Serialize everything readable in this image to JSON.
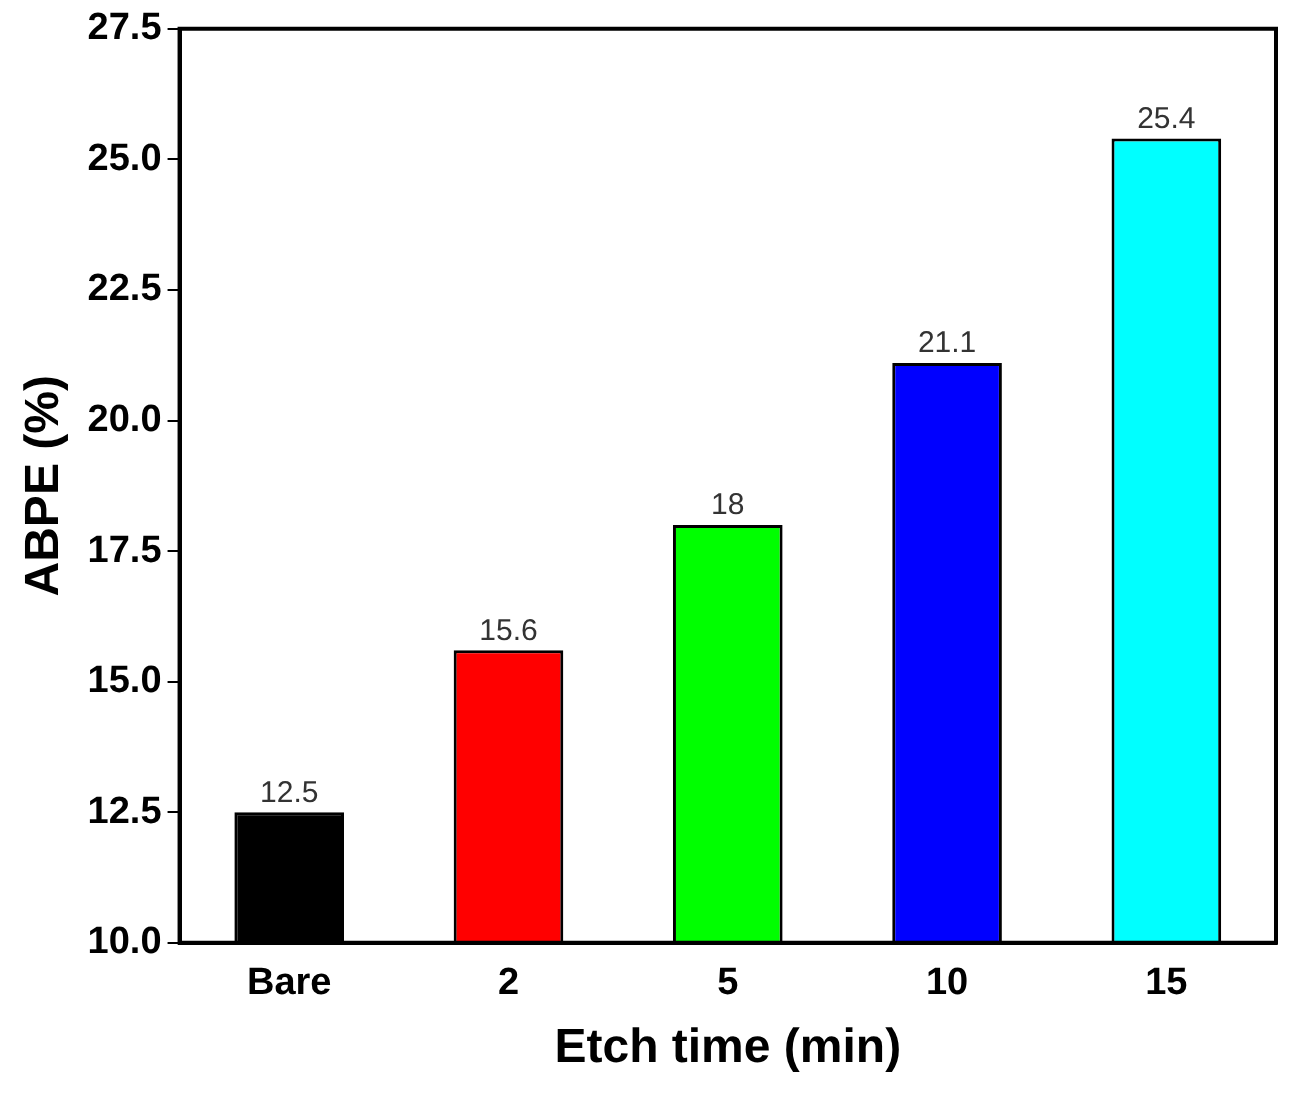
{
  "chart_data": {
    "type": "bar",
    "xlabel": "Etch time (min)",
    "ylabel": "ABPE (%)",
    "categories": [
      "Bare",
      "2",
      "5",
      "10",
      "15"
    ],
    "values": [
      12.5,
      15.6,
      18,
      21.1,
      25.4
    ],
    "colors": [
      "#000000",
      "#ff0000",
      "#00ff00",
      "#0000ff",
      "#00ffff"
    ],
    "ylim": [
      10,
      27.5
    ],
    "yticks": [
      {
        "value": 10,
        "label": "10.0"
      },
      {
        "value": 12.5,
        "label": "12.5"
      },
      {
        "value": 15,
        "label": "15.0"
      },
      {
        "value": 17.5,
        "label": "17.5"
      },
      {
        "value": 20,
        "label": "20.0"
      },
      {
        "value": 22.5,
        "label": "22.5"
      },
      {
        "value": 25,
        "label": "25.0"
      },
      {
        "value": 27.5,
        "label": "27.5"
      }
    ],
    "grid": false,
    "legend": false,
    "data_labels": true
  }
}
